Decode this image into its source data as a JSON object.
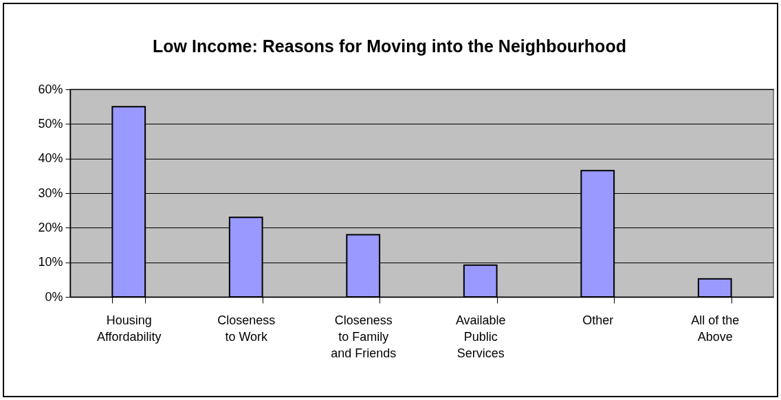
{
  "chart_data": {
    "type": "bar",
    "title": "Low Income: Reasons for Moving into the Neighbourhood",
    "categories": [
      "Housing Affordability",
      "Closeness to Work",
      "Closeness to Family and Friends",
      "Available Public Services",
      "Other",
      "All of the Above"
    ],
    "values": [
      55,
      23,
      18,
      9.2,
      36.5,
      5.2
    ],
    "color": "#9999ff",
    "ylim": [
      0,
      60
    ],
    "yticks": [
      {
        "value": 0,
        "label": "0%"
      },
      {
        "value": 10,
        "label": "10%"
      },
      {
        "value": 20,
        "label": "20%"
      },
      {
        "value": 30,
        "label": "30%"
      },
      {
        "value": 40,
        "label": "40%"
      },
      {
        "value": 50,
        "label": "50%"
      },
      {
        "value": 60,
        "label": "60%"
      }
    ],
    "grid": "y"
  }
}
